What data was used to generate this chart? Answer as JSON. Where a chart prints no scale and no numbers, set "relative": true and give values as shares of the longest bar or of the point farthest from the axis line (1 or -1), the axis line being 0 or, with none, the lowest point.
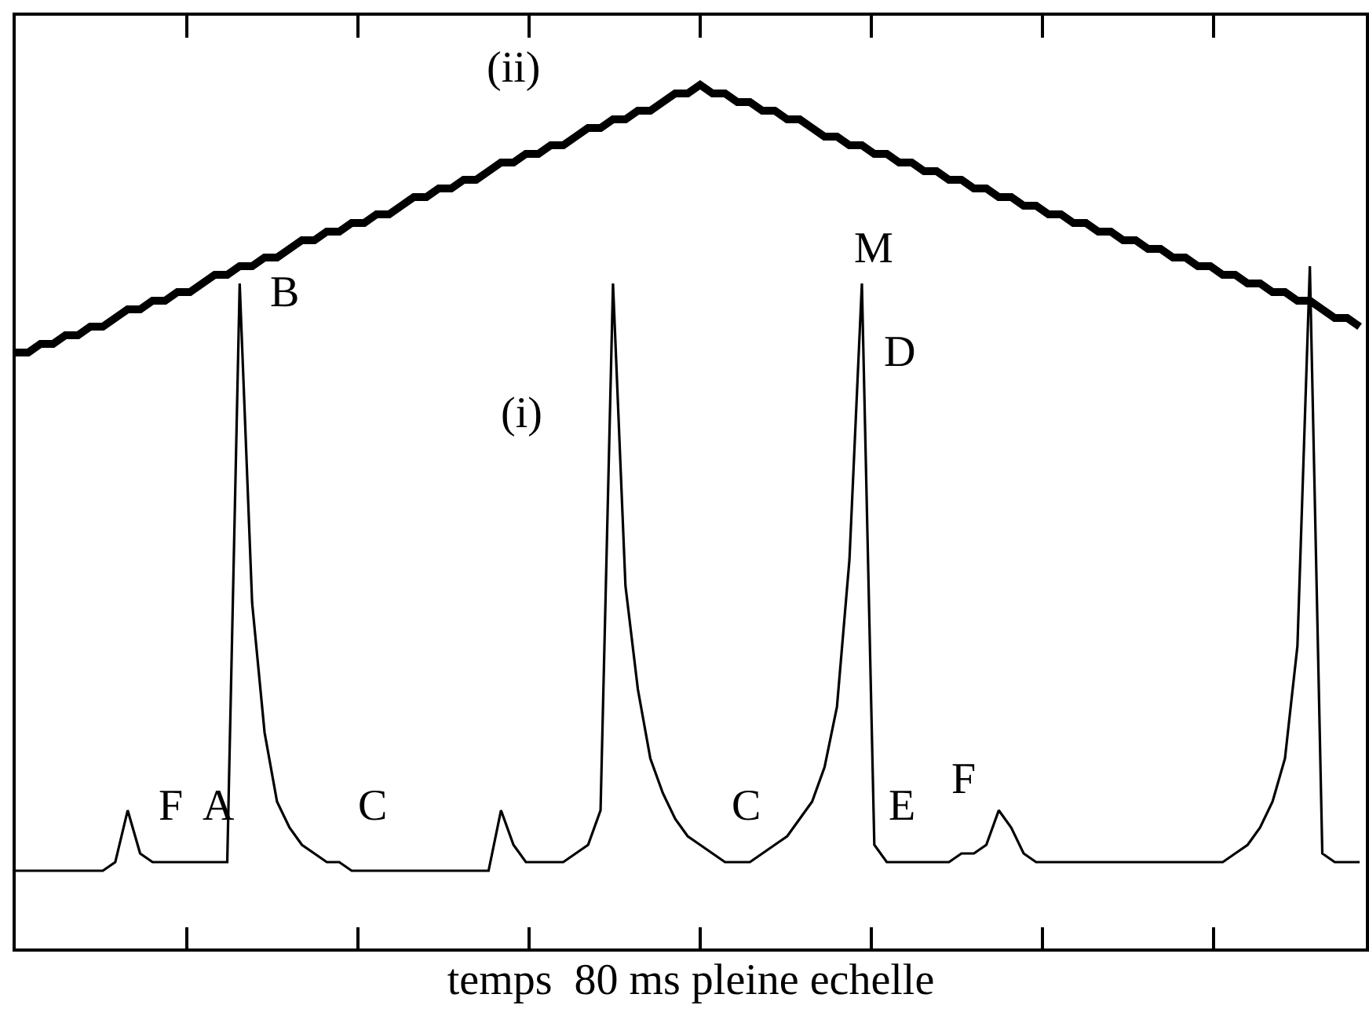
{
  "chart_data": {
    "type": "line",
    "relative": true,
    "xlabel": "temps  80 ms pleine echelle",
    "categories": [
      null,
      null,
      null,
      null,
      null,
      null,
      null,
      null,
      null,
      null,
      null,
      null,
      null,
      null,
      null,
      null,
      null,
      null,
      null,
      null,
      null,
      null,
      null,
      null,
      null,
      null,
      null,
      null,
      null,
      null,
      null,
      null,
      null,
      null,
      null,
      null,
      null,
      null,
      null,
      null,
      null,
      null,
      null,
      null,
      null,
      null,
      null,
      null,
      null,
      null,
      null,
      null,
      null,
      null,
      null,
      null,
      null,
      null,
      null,
      null,
      null,
      null,
      null,
      null,
      null,
      null,
      null,
      null,
      null,
      null,
      null,
      null,
      null,
      null,
      null,
      null,
      null,
      null,
      null,
      null,
      null,
      null,
      null,
      null,
      null,
      null,
      null,
      null,
      null,
      null,
      null,
      null,
      null,
      null,
      null,
      null,
      null,
      null,
      null,
      null,
      null,
      null,
      null,
      null,
      null,
      null,
      null,
      null,
      null
    ],
    "series": [
      {
        "name": "(i)",
        "color": "#000000",
        "values": [
          0.09,
          0.09,
          0.09,
          0.09,
          0.09,
          0.09,
          0.09,
          0.09,
          0.1,
          0.16,
          0.11,
          0.1,
          0.1,
          0.1,
          0.1,
          0.1,
          0.1,
          0.1,
          0.77,
          0.4,
          0.25,
          0.17,
          0.14,
          0.12,
          0.11,
          0.1,
          0.1,
          0.09,
          0.09,
          0.09,
          0.09,
          0.09,
          0.09,
          0.09,
          0.09,
          0.09,
          0.09,
          0.09,
          0.09,
          0.16,
          0.12,
          0.1,
          0.1,
          0.1,
          0.1,
          0.11,
          0.12,
          0.16,
          0.77,
          0.42,
          0.3,
          0.22,
          0.18,
          0.15,
          0.13,
          0.12,
          0.11,
          0.1,
          0.1,
          0.1,
          0.11,
          0.12,
          0.13,
          0.15,
          0.17,
          0.21,
          0.28,
          0.45,
          0.77,
          0.12,
          0.1,
          0.1,
          0.1,
          0.1,
          0.1,
          0.1,
          0.11,
          0.11,
          0.12,
          0.16,
          0.14,
          0.11,
          0.1,
          0.1,
          0.1,
          0.1,
          0.1,
          0.1,
          0.1,
          0.1,
          0.1,
          0.1,
          0.1,
          0.1,
          0.1,
          0.1,
          0.1,
          0.1,
          0.11,
          0.12,
          0.14,
          0.17,
          0.22,
          0.35,
          0.79,
          0.11,
          0.1,
          0.1,
          0.1
        ]
      },
      {
        "name": "(ii)",
        "color": "#000000",
        "values": [
          0.69,
          0.69,
          0.7,
          0.7,
          0.71,
          0.71,
          0.72,
          0.72,
          0.73,
          0.74,
          0.74,
          0.75,
          0.75,
          0.76,
          0.76,
          0.77,
          0.78,
          0.78,
          0.79,
          0.79,
          0.8,
          0.8,
          0.81,
          0.82,
          0.82,
          0.83,
          0.83,
          0.84,
          0.84,
          0.85,
          0.85,
          0.86,
          0.87,
          0.87,
          0.88,
          0.88,
          0.89,
          0.89,
          0.9,
          0.91,
          0.91,
          0.92,
          0.92,
          0.93,
          0.93,
          0.94,
          0.95,
          0.95,
          0.96,
          0.96,
          0.97,
          0.97,
          0.98,
          0.99,
          0.99,
          1.0,
          0.99,
          0.99,
          0.98,
          0.98,
          0.97,
          0.97,
          0.96,
          0.96,
          0.95,
          0.94,
          0.94,
          0.93,
          0.93,
          0.92,
          0.92,
          0.91,
          0.91,
          0.9,
          0.9,
          0.89,
          0.89,
          0.88,
          0.88,
          0.87,
          0.87,
          0.86,
          0.86,
          0.85,
          0.85,
          0.84,
          0.84,
          0.83,
          0.83,
          0.82,
          0.82,
          0.81,
          0.81,
          0.8,
          0.8,
          0.79,
          0.79,
          0.78,
          0.78,
          0.77,
          0.77,
          0.76,
          0.76,
          0.75,
          0.75,
          0.74,
          0.73,
          0.73,
          0.72
        ]
      }
    ],
    "annotations": [
      "M",
      "B",
      "D",
      "F",
      "A",
      "C",
      "C",
      "E",
      "F"
    ],
    "marker": "none",
    "line_style": "solid"
  }
}
